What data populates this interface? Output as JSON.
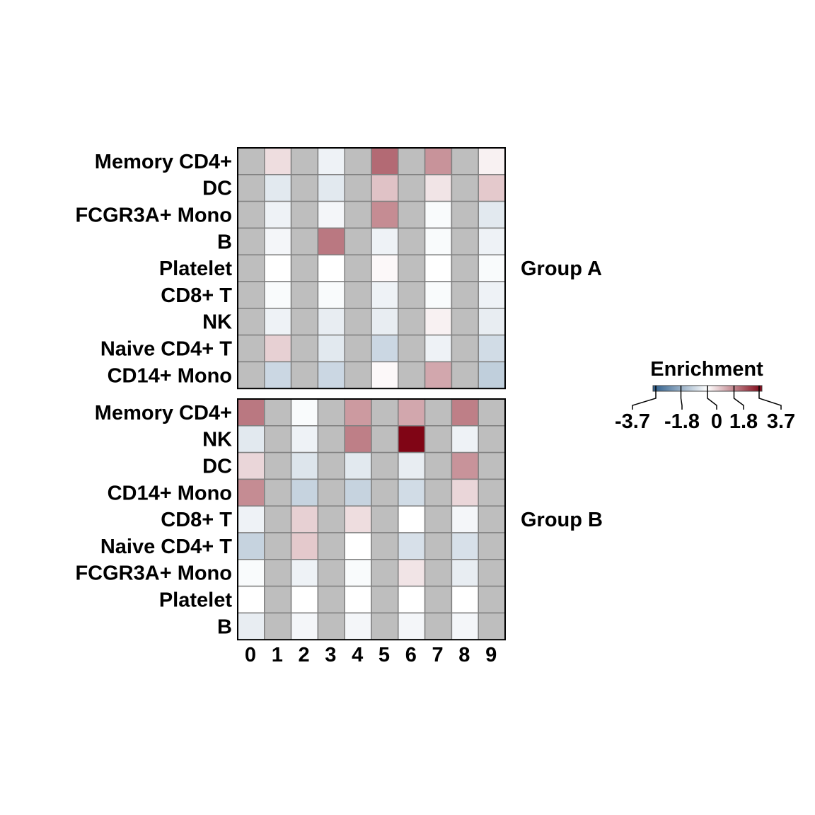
{
  "chart_data": {
    "type": "heatmap",
    "x_categories": [
      "0",
      "1",
      "2",
      "3",
      "4",
      "5",
      "6",
      "7",
      "8",
      "9"
    ],
    "missing_color": "#bebebe",
    "panels": [
      {
        "group": "Group A",
        "rows": [
          "Memory CD4+",
          "DC",
          "FCGR3A+ Mono",
          "B",
          "Platelet",
          "CD8+ T",
          "NK",
          "Naive CD4+ T",
          "CD14+ Mono"
        ],
        "values": [
          [
            null,
            0.5,
            null,
            -0.3,
            null,
            2.2,
            null,
            1.6,
            null,
            0.2
          ],
          [
            null,
            -0.5,
            null,
            -0.5,
            null,
            0.9,
            null,
            0.4,
            null,
            0.8
          ],
          [
            null,
            -0.3,
            null,
            -0.2,
            null,
            1.7,
            null,
            -0.1,
            null,
            -0.5
          ],
          [
            null,
            -0.2,
            null,
            2.0,
            null,
            -0.3,
            null,
            -0.1,
            null,
            -0.3
          ],
          [
            null,
            0.0,
            null,
            0.0,
            null,
            0.1,
            null,
            0.0,
            null,
            -0.1
          ],
          [
            null,
            -0.1,
            null,
            -0.1,
            null,
            -0.3,
            null,
            -0.1,
            null,
            -0.3
          ],
          [
            null,
            -0.3,
            null,
            -0.4,
            null,
            -0.4,
            null,
            0.2,
            null,
            -0.4
          ],
          [
            null,
            0.7,
            null,
            -0.5,
            null,
            -0.9,
            null,
            -0.3,
            null,
            -0.8
          ],
          [
            null,
            -0.9,
            null,
            -0.9,
            null,
            0.1,
            null,
            1.3,
            null,
            -1.1
          ]
        ]
      },
      {
        "group": "Group B",
        "rows": [
          "Memory CD4+",
          "NK",
          "DC",
          "CD14+ Mono",
          "CD8+ T",
          "Naive CD4+ T",
          "FCGR3A+ Mono",
          "Platelet",
          "B"
        ],
        "values": [
          [
            2.0,
            null,
            -0.1,
            null,
            1.5,
            null,
            1.3,
            null,
            1.9,
            null
          ],
          [
            -0.5,
            null,
            -0.3,
            null,
            1.9,
            null,
            3.7,
            null,
            -0.3,
            null
          ],
          [
            0.6,
            null,
            -0.6,
            null,
            -0.5,
            null,
            -0.4,
            null,
            1.6,
            null
          ],
          [
            1.7,
            null,
            -1.0,
            null,
            -1.0,
            null,
            -0.8,
            null,
            0.6,
            null
          ],
          [
            -0.3,
            null,
            0.7,
            null,
            0.5,
            null,
            0.0,
            null,
            -0.2,
            null
          ],
          [
            -1.0,
            null,
            0.8,
            null,
            0.0,
            null,
            -0.7,
            null,
            -0.7,
            null
          ],
          [
            -0.1,
            null,
            -0.3,
            null,
            -0.1,
            null,
            0.4,
            null,
            -0.4,
            null
          ],
          [
            0.0,
            null,
            0.0,
            null,
            0.0,
            null,
            0.0,
            null,
            0.0,
            null
          ],
          [
            -0.4,
            null,
            -0.2,
            null,
            -0.2,
            null,
            -0.2,
            null,
            -0.2,
            null
          ]
        ]
      }
    ],
    "legend": {
      "title": "Enrichment",
      "ticks": [
        -3.7,
        -1.8,
        0,
        1.8,
        3.7
      ],
      "tick_labels": [
        "-3.7",
        "-1.8",
        "0",
        "1.8",
        "3.7"
      ],
      "range": [
        -3.7,
        3.7
      ],
      "low_color": "#2b5c8a",
      "mid_color": "#ffffff",
      "high_color": "#800515"
    }
  }
}
